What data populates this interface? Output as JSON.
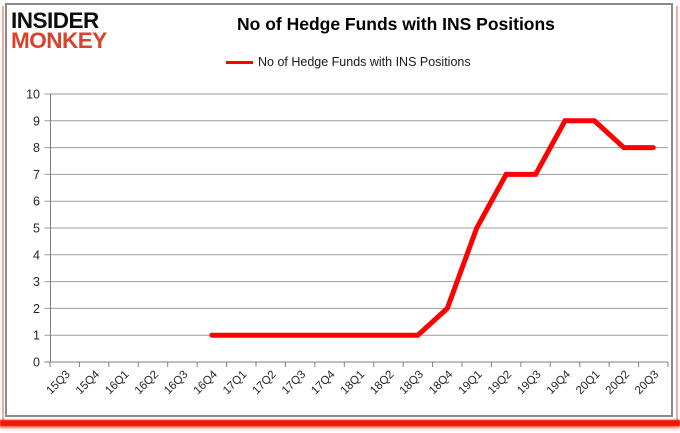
{
  "brand": {
    "line1": "INSIDER",
    "line2": "MONKEY"
  },
  "header": {
    "title": "No of Hedge Funds with INS Positions"
  },
  "legend": {
    "label": "No of Hedge Funds with INS Positions"
  },
  "chart_data": {
    "type": "line",
    "title": "No of Hedge Funds with INS Positions",
    "categories": [
      "15Q3",
      "15Q4",
      "16Q1",
      "16Q2",
      "16Q3",
      "16Q4",
      "17Q1",
      "17Q2",
      "17Q3",
      "17Q4",
      "18Q1",
      "18Q2",
      "18Q3",
      "18Q4",
      "19Q1",
      "19Q2",
      "19Q3",
      "19Q4",
      "20Q1",
      "20Q2",
      "20Q3"
    ],
    "series": [
      {
        "name": "No of Hedge Funds with INS Positions",
        "color": "#fe0000",
        "values": [
          null,
          null,
          null,
          null,
          null,
          1,
          1,
          1,
          1,
          1,
          1,
          1,
          1,
          2,
          5,
          7,
          7,
          9,
          9,
          8,
          8
        ]
      }
    ],
    "xlabel": "",
    "ylabel": "",
    "ylim": [
      0,
      10
    ],
    "ytick_step": 1,
    "grid": true,
    "legend_position": "top"
  },
  "colors": {
    "accent_red": "#fe0000",
    "brand_red": "#d8422c",
    "brand_black": "#0d0d0d",
    "grid": "#9b9b9b",
    "axis": "#808080",
    "tick_text": "#262626",
    "frame_border": "#8a8a8a",
    "edge_pink": "#f2aba0",
    "bottom_bar": "#f01505"
  }
}
